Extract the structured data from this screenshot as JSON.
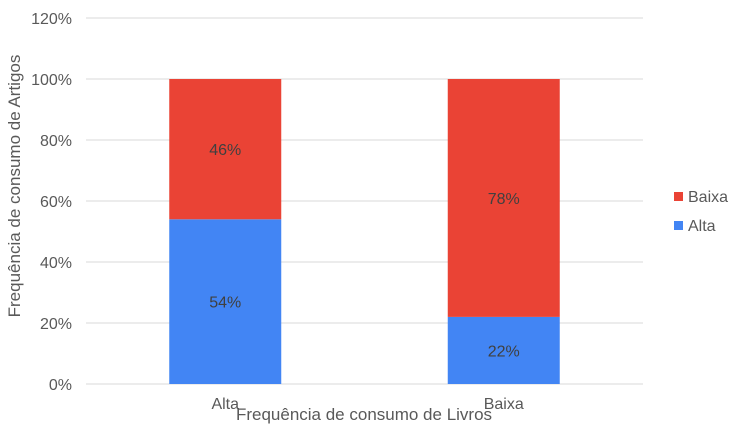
{
  "chart_data": {
    "type": "bar",
    "stacked": true,
    "categories": [
      "Alta",
      "Baixa"
    ],
    "series": [
      {
        "name": "Alta",
        "values": [
          54,
          22
        ],
        "labels": [
          "54%",
          "22%"
        ],
        "color": "#4285F4"
      },
      {
        "name": "Baixa",
        "values": [
          46,
          78
        ],
        "labels": [
          "46%",
          "78%"
        ],
        "color": "#EA4335"
      }
    ],
    "xlabel": "Frequência de consumo de Livros",
    "ylabel": "Frequência de consumo de Artigos",
    "ylim": [
      0,
      120
    ],
    "yticks": [
      "0%",
      "20%",
      "40%",
      "60%",
      "80%",
      "100%",
      "120%"
    ],
    "grid": true,
    "legend": {
      "placement": "right",
      "entries": [
        "Baixa",
        "Alta"
      ]
    },
    "colors": {
      "gridline": "#d9d9d9",
      "axis_text": "#595959",
      "label_text": "#404040"
    }
  }
}
